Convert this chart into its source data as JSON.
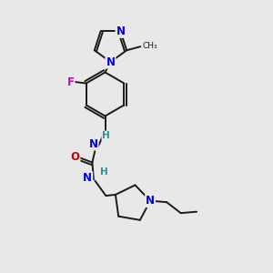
{
  "bg_color": "#e8e8e8",
  "bond_color": "#1a1a1a",
  "N_color": "#0000ee",
  "O_color": "#cc0000",
  "F_color": "#cc00cc",
  "H_color": "#2a9090",
  "figsize": [
    3.0,
    3.0
  ],
  "dpi": 100,
  "xlim": [
    0,
    10
  ],
  "ylim": [
    0,
    10
  ]
}
